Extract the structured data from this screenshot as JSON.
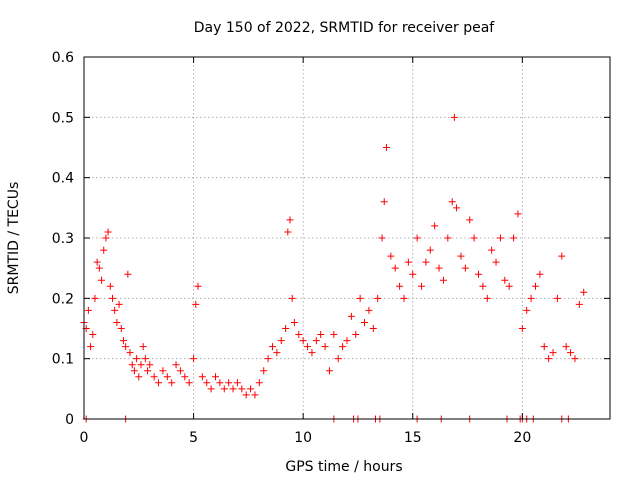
{
  "chart_data": {
    "type": "scatter",
    "title": "Day 150 of 2022, SRMTID for receiver peaf",
    "xlabel": "GPS time / hours",
    "ylabel": "SRMTID / TECUs",
    "xlim": [
      0,
      24
    ],
    "ylim": [
      0,
      0.6
    ],
    "xticks": [
      0,
      5,
      10,
      15,
      20
    ],
    "yticks": [
      0,
      0.1,
      0.2,
      0.3,
      0.4,
      0.5,
      0.6
    ],
    "xtick_labels": [
      "0",
      "5",
      "10",
      "15",
      "20"
    ],
    "ytick_labels": [
      "0",
      "0.1",
      "0.2",
      "0.3",
      "0.4",
      "0.5",
      "0.6"
    ],
    "grid": true,
    "marker": "+",
    "color": "#ff0000",
    "series": [
      {
        "name": "SRMTID",
        "x": [
          0.0,
          0.1,
          0.2,
          0.3,
          0.4,
          0.5,
          0.6,
          0.7,
          0.8,
          0.9,
          1.0,
          1.1,
          1.2,
          1.3,
          1.4,
          1.5,
          1.6,
          1.7,
          1.8,
          1.9,
          2.0,
          2.1,
          2.2,
          2.3,
          2.4,
          2.5,
          2.6,
          2.7,
          2.8,
          2.9,
          3.0,
          3.2,
          3.4,
          3.6,
          3.8,
          4.0,
          4.2,
          4.4,
          4.6,
          4.8,
          5.0,
          5.1,
          5.2,
          5.4,
          5.6,
          5.8,
          6.0,
          6.2,
          6.4,
          6.6,
          6.8,
          7.0,
          7.2,
          7.4,
          7.6,
          7.8,
          8.0,
          8.2,
          8.4,
          8.6,
          8.8,
          9.0,
          9.2,
          9.3,
          9.4,
          9.5,
          9.6,
          9.8,
          10.0,
          10.2,
          10.4,
          10.6,
          10.8,
          11.0,
          11.2,
          11.4,
          11.6,
          11.8,
          12.0,
          12.2,
          12.4,
          12.6,
          12.8,
          13.0,
          13.2,
          13.4,
          13.6,
          13.7,
          13.8,
          14.0,
          14.2,
          14.4,
          14.6,
          14.8,
          15.0,
          15.2,
          15.4,
          15.6,
          15.8,
          16.0,
          16.2,
          16.4,
          16.6,
          16.8,
          16.9,
          17.0,
          17.2,
          17.4,
          17.6,
          17.8,
          18.0,
          18.2,
          18.4,
          18.6,
          18.8,
          19.0,
          19.2,
          19.4,
          19.6,
          19.8,
          20.0,
          20.2,
          20.4,
          20.6,
          20.8,
          21.0,
          21.2,
          21.4,
          21.6,
          21.8,
          22.0,
          22.2,
          22.4,
          22.6,
          22.8
        ],
        "y": [
          0.16,
          0.15,
          0.18,
          0.12,
          0.14,
          0.2,
          0.26,
          0.25,
          0.23,
          0.28,
          0.3,
          0.31,
          0.22,
          0.2,
          0.18,
          0.16,
          0.19,
          0.15,
          0.13,
          0.12,
          0.24,
          0.11,
          0.09,
          0.08,
          0.1,
          0.07,
          0.09,
          0.12,
          0.1,
          0.08,
          0.09,
          0.07,
          0.06,
          0.08,
          0.07,
          0.06,
          0.09,
          0.08,
          0.07,
          0.06,
          0.1,
          0.19,
          0.22,
          0.07,
          0.06,
          0.05,
          0.07,
          0.06,
          0.05,
          0.06,
          0.05,
          0.06,
          0.05,
          0.04,
          0.05,
          0.04,
          0.06,
          0.08,
          0.1,
          0.12,
          0.11,
          0.13,
          0.15,
          0.31,
          0.33,
          0.2,
          0.16,
          0.14,
          0.13,
          0.12,
          0.11,
          0.13,
          0.14,
          0.12,
          0.08,
          0.14,
          0.1,
          0.12,
          0.13,
          0.17,
          0.14,
          0.2,
          0.16,
          0.18,
          0.15,
          0.2,
          0.3,
          0.36,
          0.45,
          0.27,
          0.25,
          0.22,
          0.2,
          0.26,
          0.24,
          0.3,
          0.22,
          0.26,
          0.28,
          0.32,
          0.25,
          0.23,
          0.3,
          0.36,
          0.5,
          0.35,
          0.27,
          0.25,
          0.33,
          0.3,
          0.24,
          0.22,
          0.2,
          0.28,
          0.26,
          0.3,
          0.23,
          0.22,
          0.3,
          0.34,
          0.15,
          0.18,
          0.2,
          0.22,
          0.24,
          0.12,
          0.1,
          0.11,
          0.2,
          0.27,
          0.12,
          0.11,
          0.1,
          0.19,
          0.21
        ],
        "zero_flags_x": [
          0.1,
          1.9,
          11.4,
          12.3,
          12.5,
          13.3,
          13.5,
          15.2,
          16.3,
          17.6,
          19.3,
          19.9,
          20.0,
          20.2,
          20.5,
          21.8,
          22.1
        ]
      }
    ]
  }
}
